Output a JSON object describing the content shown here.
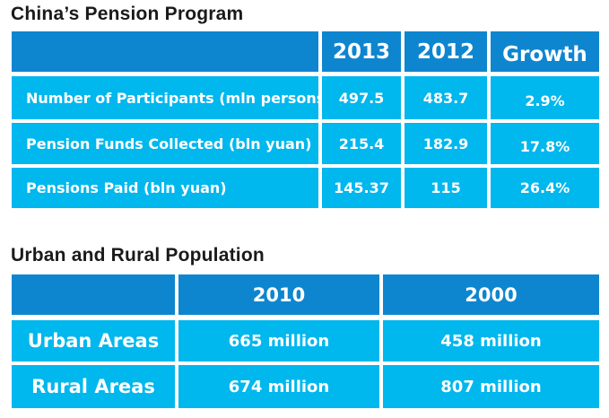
{
  "pension": {
    "title": "China’s Pension Program",
    "headers": [
      "",
      "2013",
      "2012",
      "Growth"
    ],
    "rows": [
      {
        "label": "Number of Participants (mln persons)",
        "y2013": "497.5",
        "y2012": "483.7",
        "growth": "2.9%"
      },
      {
        "label": "Pension Funds Collected (bln yuan)",
        "y2013": "215.4",
        "y2012": "182.9",
        "growth": "17.8%"
      },
      {
        "label": "Pensions Paid (bln yuan)",
        "y2013": "145.37",
        "y2012": "115",
        "growth": "26.4%"
      }
    ]
  },
  "population": {
    "title": "Urban and Rural Population",
    "headers": [
      "",
      "2010",
      "2000"
    ],
    "rows": [
      {
        "label": "Urban Areas",
        "y2010": "665 million",
        "y2000": "458 million"
      },
      {
        "label": "Rural Areas",
        "y2010": "674 million",
        "y2000": "807 million"
      }
    ]
  },
  "colors": {
    "header_bg": "#0e86cf",
    "body_bg": "#00b7ee",
    "text": "#ffffff",
    "title_text": "#1a1a1a"
  }
}
